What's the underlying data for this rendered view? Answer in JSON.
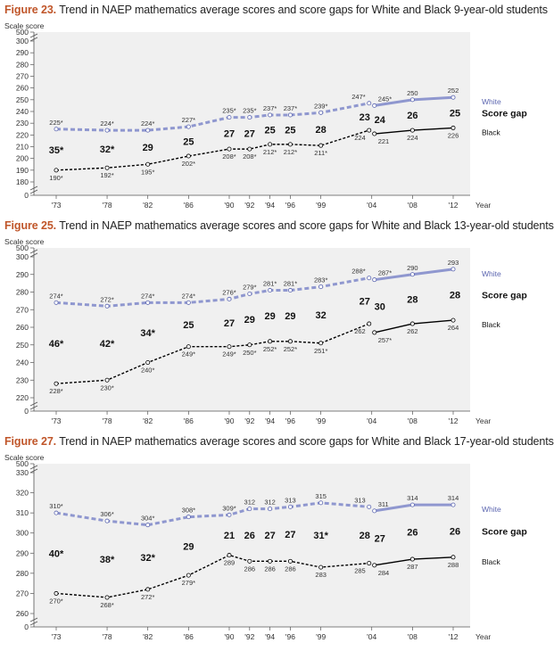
{
  "colors": {
    "white": "#8f97cf",
    "black": "#000000",
    "figure_label": "#c0562a",
    "plot_bg": "#f0f0f0"
  },
  "legend": {
    "white": "White",
    "gap": "Score gap",
    "black": "Black"
  },
  "chart_data": [
    {
      "type": "line",
      "figure_label": "Figure 23.",
      "title": "Trend in NAEP mathematics average scores and score gaps for White and Black 9-year-old students",
      "ylabel": "Scale score",
      "xlabel": "Year",
      "x_ticks": [
        "'73",
        "'78",
        "'82",
        "'86",
        "'90",
        "'92",
        "'94",
        "'96",
        "'99",
        "'04",
        "'08",
        "'12"
      ],
      "y_ticks": [
        0,
        180,
        190,
        200,
        210,
        220,
        230,
        240,
        250,
        260,
        270,
        280,
        290,
        300,
        500
      ],
      "ylim": [
        180,
        300
      ],
      "axis_break": true,
      "series": [
        {
          "name": "White",
          "values": [
            225,
            224,
            224,
            227,
            235,
            235,
            237,
            237,
            239,
            247,
            245,
            250,
            252
          ],
          "labels": [
            "225*",
            "224*",
            "224*",
            "227*",
            "235*",
            "235*",
            "237*",
            "237*",
            "239*",
            "247*",
            "245*",
            "250",
            "252"
          ]
        },
        {
          "name": "Black",
          "values": [
            190,
            192,
            195,
            202,
            208,
            208,
            212,
            212,
            211,
            224,
            221,
            224,
            226
          ],
          "labels": [
            "190*",
            "192*",
            "195*",
            "202*",
            "208*",
            "208*",
            "212*",
            "212*",
            "211*",
            "224",
            "221",
            "224",
            "226"
          ]
        }
      ],
      "gaps": [
        "35*",
        "32*",
        "29",
        "25",
        "27",
        "27",
        "25",
        "25",
        "28",
        "23",
        "24",
        "26",
        "25"
      ]
    },
    {
      "type": "line",
      "figure_label": "Figure 25.",
      "title": "Trend in NAEP mathematics average scores and score gaps for White and Black 13-year-old students",
      "ylabel": "Scale score",
      "xlabel": "Year",
      "x_ticks": [
        "'73",
        "'78",
        "'82",
        "'86",
        "'90",
        "'92",
        "'94",
        "'96",
        "'99",
        "'04",
        "'08",
        "'12"
      ],
      "y_ticks": [
        0,
        220,
        230,
        240,
        250,
        260,
        270,
        280,
        290,
        300,
        500
      ],
      "ylim": [
        210,
        300
      ],
      "axis_break": true,
      "series": [
        {
          "name": "White",
          "values": [
            274,
            272,
            274,
            274,
            276,
            279,
            281,
            281,
            283,
            288,
            287,
            290,
            293
          ],
          "labels": [
            "274*",
            "272*",
            "274*",
            "274*",
            "276*",
            "279*",
            "281*",
            "281*",
            "283*",
            "288*",
            "287*",
            "290",
            "293"
          ]
        },
        {
          "name": "Black",
          "values": [
            228,
            230,
            240,
            249,
            249,
            250,
            252,
            252,
            251,
            262,
            257,
            262,
            264
          ],
          "labels": [
            "228*",
            "230*",
            "240*",
            "249*",
            "249*",
            "250*",
            "252*",
            "252*",
            "251*",
            "262",
            "257*",
            "262",
            "264"
          ]
        }
      ],
      "gaps": [
        "46*",
        "42*",
        "34*",
        "25",
        "27",
        "29",
        "29",
        "29",
        "32",
        "27",
        "30",
        "28",
        "28"
      ]
    },
    {
      "type": "line",
      "figure_label": "Figure 27.",
      "title": "Trend in NAEP mathematics average scores and score gaps for White and Black 17-year-old students",
      "ylabel": "Scale score",
      "xlabel": "Year",
      "x_ticks": [
        "'73",
        "'78",
        "'82",
        "'86",
        "'90",
        "'92",
        "'94",
        "'96",
        "'99",
        "'04",
        "'08",
        "'12"
      ],
      "y_ticks": [
        0,
        260,
        270,
        280,
        290,
        300,
        310,
        320,
        330,
        500
      ],
      "ylim": [
        250,
        330
      ],
      "axis_break": true,
      "series": [
        {
          "name": "White",
          "values": [
            310,
            306,
            304,
            308,
            309,
            312,
            312,
            313,
            315,
            313,
            311,
            314,
            314
          ],
          "labels": [
            "310*",
            "306*",
            "304*",
            "308*",
            "309*",
            "312",
            "312",
            "313",
            "315",
            "313",
            "311",
            "314",
            "314"
          ]
        },
        {
          "name": "Black",
          "values": [
            270,
            268,
            272,
            279,
            289,
            286,
            286,
            286,
            283,
            285,
            284,
            287,
            288
          ],
          "labels": [
            "270*",
            "268*",
            "272*",
            "279*",
            "289",
            "286",
            "286",
            "286",
            "283",
            "285",
            "284",
            "287",
            "288"
          ]
        }
      ],
      "gaps": [
        "40*",
        "38*",
        "32*",
        "29",
        "21",
        "26",
        "27",
        "27",
        "31*",
        "28",
        "27",
        "26",
        "26"
      ]
    }
  ]
}
